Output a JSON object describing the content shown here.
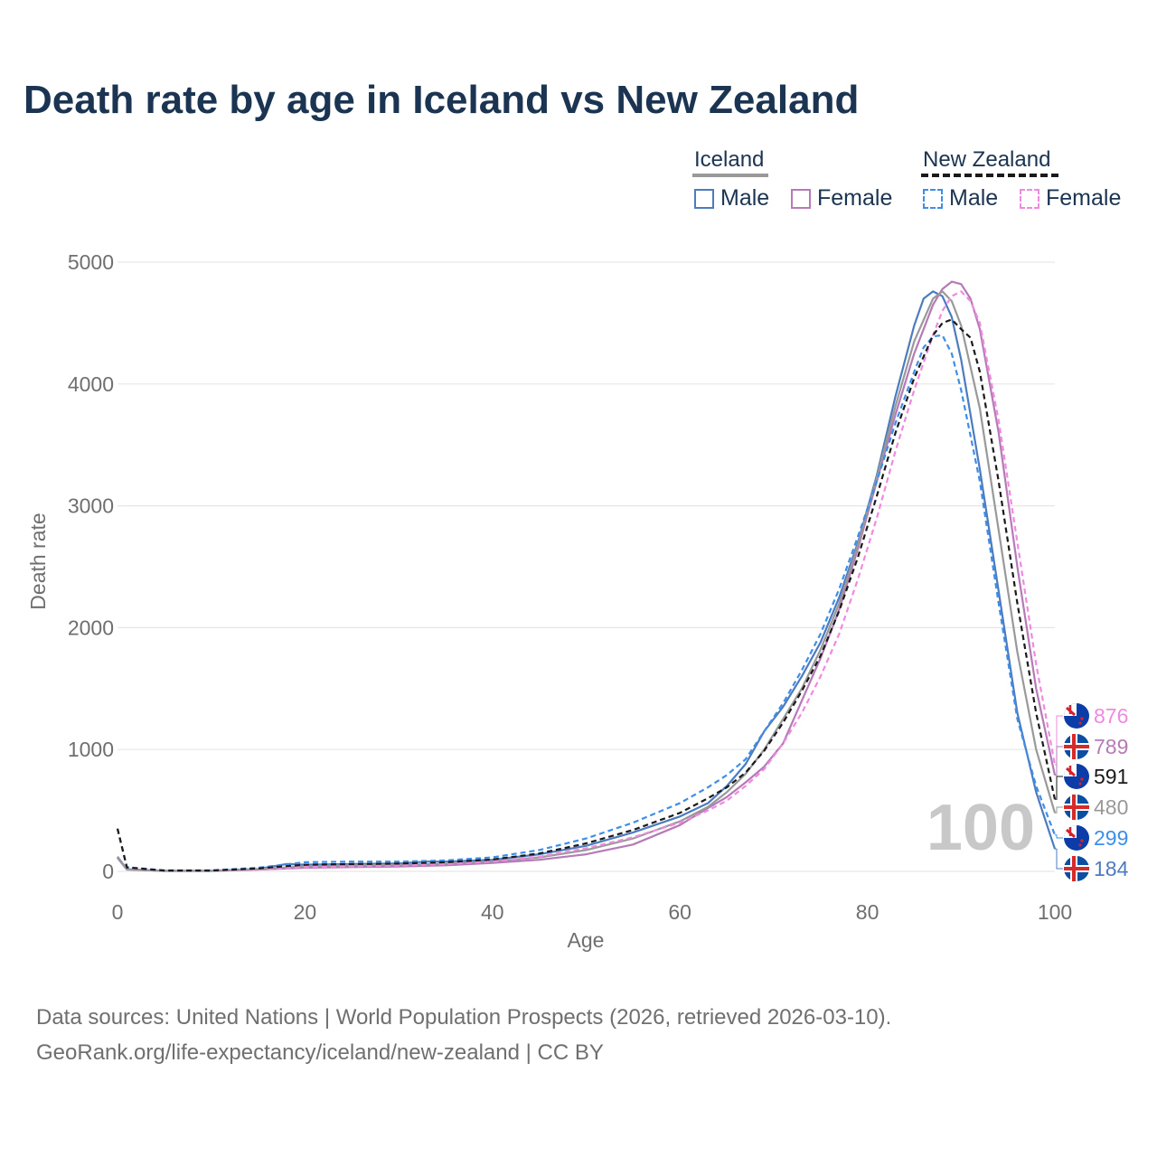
{
  "title": "Death rate by age in Iceland vs New Zealand",
  "legend": {
    "iceland": {
      "label": "Iceland",
      "male": "Male",
      "female": "Female"
    },
    "new_zealand": {
      "label": "New Zealand",
      "male": "Male",
      "female": "Female"
    }
  },
  "colors": {
    "iceland_male": "#4c7bc0",
    "iceland_female": "#b57ab7",
    "iceland_total": "#999999",
    "nz_male": "#3d8ee8",
    "nz_female": "#f08ae0",
    "nz_total": "#1a1a1a",
    "grid": "#e6e6e6",
    "tick": "#6f6f6f"
  },
  "year_watermark": "100",
  "chart_data": {
    "type": "line",
    "xlabel": "Age",
    "ylabel": "Death rate",
    "xlim": [
      0,
      100
    ],
    "ylim": [
      0,
      5000
    ],
    "x_ticks": [
      0,
      20,
      40,
      60,
      80,
      100
    ],
    "y_ticks": [
      0,
      1000,
      2000,
      3000,
      4000,
      5000
    ],
    "grid": true,
    "series": [
      {
        "key": "iceland_male",
        "name": "Iceland Male",
        "dashed": false,
        "color": "#4c7bc0",
        "points": [
          [
            0,
            120
          ],
          [
            1,
            18
          ],
          [
            5,
            5
          ],
          [
            10,
            5
          ],
          [
            15,
            20
          ],
          [
            18,
            60
          ],
          [
            20,
            55
          ],
          [
            25,
            60
          ],
          [
            30,
            65
          ],
          [
            33,
            80
          ],
          [
            35,
            80
          ],
          [
            40,
            95
          ],
          [
            45,
            140
          ],
          [
            50,
            210
          ],
          [
            55,
            320
          ],
          [
            60,
            450
          ],
          [
            63,
            560
          ],
          [
            65,
            700
          ],
          [
            67,
            880
          ],
          [
            69,
            1150
          ],
          [
            71,
            1350
          ],
          [
            73,
            1600
          ],
          [
            75,
            1880
          ],
          [
            77,
            2250
          ],
          [
            79,
            2700
          ],
          [
            81,
            3250
          ],
          [
            83,
            3900
          ],
          [
            85,
            4480
          ],
          [
            86,
            4700
          ],
          [
            87,
            4760
          ],
          [
            88,
            4720
          ],
          [
            89,
            4550
          ],
          [
            90,
            4200
          ],
          [
            92,
            3300
          ],
          [
            94,
            2300
          ],
          [
            96,
            1300
          ],
          [
            98,
            650
          ],
          [
            100,
            184
          ]
        ]
      },
      {
        "key": "iceland_female",
        "name": "Iceland Female",
        "dashed": false,
        "color": "#b57ab7",
        "points": [
          [
            0,
            110
          ],
          [
            1,
            15
          ],
          [
            5,
            4
          ],
          [
            10,
            4
          ],
          [
            15,
            15
          ],
          [
            20,
            30
          ],
          [
            25,
            35
          ],
          [
            30,
            40
          ],
          [
            35,
            50
          ],
          [
            40,
            70
          ],
          [
            45,
            95
          ],
          [
            50,
            140
          ],
          [
            55,
            220
          ],
          [
            60,
            380
          ],
          [
            63,
            520
          ],
          [
            65,
            610
          ],
          [
            67,
            730
          ],
          [
            69,
            860
          ],
          [
            71,
            1050
          ],
          [
            73,
            1400
          ],
          [
            75,
            1750
          ],
          [
            77,
            2150
          ],
          [
            79,
            2650
          ],
          [
            81,
            3200
          ],
          [
            83,
            3750
          ],
          [
            85,
            4250
          ],
          [
            87,
            4650
          ],
          [
            88,
            4780
          ],
          [
            89,
            4840
          ],
          [
            90,
            4820
          ],
          [
            91,
            4700
          ],
          [
            92,
            4450
          ],
          [
            94,
            3600
          ],
          [
            96,
            2500
          ],
          [
            98,
            1500
          ],
          [
            100,
            789
          ]
        ]
      },
      {
        "key": "iceland_total",
        "name": "Iceland Total",
        "dashed": false,
        "color": "#999999",
        "points": [
          [
            0,
            115
          ],
          [
            1,
            16
          ],
          [
            5,
            4
          ],
          [
            10,
            4
          ],
          [
            15,
            18
          ],
          [
            20,
            42
          ],
          [
            25,
            48
          ],
          [
            30,
            52
          ],
          [
            35,
            63
          ],
          [
            40,
            80
          ],
          [
            45,
            115
          ],
          [
            50,
            175
          ],
          [
            55,
            270
          ],
          [
            60,
            410
          ],
          [
            63,
            530
          ],
          [
            65,
            650
          ],
          [
            67,
            800
          ],
          [
            69,
            1000
          ],
          [
            71,
            1250
          ],
          [
            73,
            1500
          ],
          [
            75,
            1820
          ],
          [
            77,
            2200
          ],
          [
            79,
            2680
          ],
          [
            81,
            3230
          ],
          [
            83,
            3820
          ],
          [
            85,
            4350
          ],
          [
            87,
            4700
          ],
          [
            88,
            4760
          ],
          [
            89,
            4680
          ],
          [
            90,
            4480
          ],
          [
            92,
            3800
          ],
          [
            94,
            2800
          ],
          [
            96,
            1800
          ],
          [
            98,
            1000
          ],
          [
            100,
            480
          ]
        ]
      },
      {
        "key": "nz_male",
        "name": "New Zealand Male",
        "dashed": true,
        "color": "#3d8ee8",
        "points": [
          [
            0,
            350
          ],
          [
            1,
            35
          ],
          [
            5,
            8
          ],
          [
            10,
            8
          ],
          [
            15,
            30
          ],
          [
            20,
            75
          ],
          [
            25,
            80
          ],
          [
            30,
            80
          ],
          [
            35,
            90
          ],
          [
            40,
            115
          ],
          [
            45,
            175
          ],
          [
            50,
            270
          ],
          [
            55,
            400
          ],
          [
            60,
            560
          ],
          [
            63,
            690
          ],
          [
            65,
            790
          ],
          [
            67,
            920
          ],
          [
            69,
            1150
          ],
          [
            71,
            1380
          ],
          [
            73,
            1650
          ],
          [
            75,
            1950
          ],
          [
            77,
            2320
          ],
          [
            79,
            2750
          ],
          [
            81,
            3200
          ],
          [
            83,
            3680
          ],
          [
            85,
            4100
          ],
          [
            86,
            4300
          ],
          [
            87,
            4390
          ],
          [
            88,
            4400
          ],
          [
            89,
            4250
          ],
          [
            90,
            3950
          ],
          [
            92,
            3200
          ],
          [
            94,
            2200
          ],
          [
            96,
            1250
          ],
          [
            98,
            700
          ],
          [
            100,
            299
          ]
        ]
      },
      {
        "key": "nz_female",
        "name": "New Zealand Female",
        "dashed": true,
        "color": "#f08ae0",
        "points": [
          [
            0,
            350
          ],
          [
            1,
            30
          ],
          [
            5,
            6
          ],
          [
            10,
            6
          ],
          [
            15,
            18
          ],
          [
            20,
            35
          ],
          [
            25,
            40
          ],
          [
            30,
            48
          ],
          [
            35,
            60
          ],
          [
            40,
            80
          ],
          [
            45,
            120
          ],
          [
            50,
            190
          ],
          [
            55,
            280
          ],
          [
            60,
            400
          ],
          [
            63,
            500
          ],
          [
            65,
            580
          ],
          [
            67,
            700
          ],
          [
            69,
            840
          ],
          [
            71,
            1050
          ],
          [
            73,
            1300
          ],
          [
            75,
            1600
          ],
          [
            77,
            1950
          ],
          [
            79,
            2400
          ],
          [
            81,
            2900
          ],
          [
            83,
            3450
          ],
          [
            85,
            3950
          ],
          [
            87,
            4400
          ],
          [
            88,
            4600
          ],
          [
            89,
            4720
          ],
          [
            90,
            4760
          ],
          [
            91,
            4680
          ],
          [
            92,
            4500
          ],
          [
            94,
            3700
          ],
          [
            96,
            2700
          ],
          [
            98,
            1700
          ],
          [
            100,
            876
          ]
        ]
      },
      {
        "key": "nz_total",
        "name": "New Zealand Total",
        "dashed": true,
        "color": "#1a1a1a",
        "points": [
          [
            0,
            350
          ],
          [
            1,
            32
          ],
          [
            5,
            7
          ],
          [
            10,
            7
          ],
          [
            15,
            24
          ],
          [
            20,
            55
          ],
          [
            25,
            60
          ],
          [
            30,
            64
          ],
          [
            35,
            75
          ],
          [
            40,
            97
          ],
          [
            45,
            147
          ],
          [
            50,
            230
          ],
          [
            55,
            340
          ],
          [
            60,
            480
          ],
          [
            63,
            600
          ],
          [
            65,
            690
          ],
          [
            67,
            810
          ],
          [
            69,
            990
          ],
          [
            71,
            1220
          ],
          [
            73,
            1480
          ],
          [
            75,
            1770
          ],
          [
            77,
            2140
          ],
          [
            79,
            2580
          ],
          [
            81,
            3080
          ],
          [
            83,
            3600
          ],
          [
            85,
            4050
          ],
          [
            87,
            4400
          ],
          [
            88,
            4500
          ],
          [
            89,
            4530
          ],
          [
            90,
            4450
          ],
          [
            91,
            4380
          ],
          [
            92,
            4100
          ],
          [
            94,
            3200
          ],
          [
            96,
            2200
          ],
          [
            98,
            1300
          ],
          [
            100,
            591
          ]
        ]
      }
    ],
    "end_labels": [
      {
        "key": "nz_female",
        "value": "876",
        "flag": "nz",
        "color": "#f08ae0"
      },
      {
        "key": "iceland_female",
        "value": "789",
        "flag": "iceland",
        "color": "#b57ab7"
      },
      {
        "key": "nz_total",
        "value": "591",
        "flag": "nz",
        "color": "#1a1a1a"
      },
      {
        "key": "iceland_total",
        "value": "480",
        "flag": "iceland",
        "color": "#999999"
      },
      {
        "key": "nz_male",
        "value": "299",
        "flag": "nz",
        "color": "#3d8ee8"
      },
      {
        "key": "iceland_male",
        "value": "184",
        "flag": "iceland",
        "color": "#4c7bc0"
      }
    ]
  },
  "footer": {
    "line1": "Data sources: United Nations | World Population Prospects (2026, retrieved 2026-03-10).",
    "line2": "GeoRank.org/life-expectancy/iceland/new-zealand | CC BY"
  }
}
